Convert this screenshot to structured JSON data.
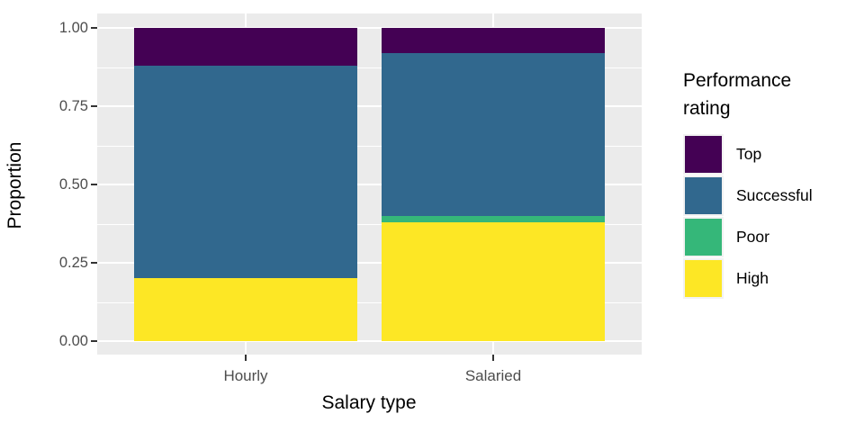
{
  "chart_data": {
    "type": "bar",
    "stacked": true,
    "normalized": true,
    "title": "",
    "xlabel": "Salary type",
    "ylabel": "Proportion",
    "categories": [
      "Hourly",
      "Salaried"
    ],
    "series": [
      {
        "name": "High",
        "color": "#FDE725",
        "values": [
          0.2,
          0.38
        ]
      },
      {
        "name": "Poor",
        "color": "#35B779",
        "values": [
          0.0,
          0.02
        ]
      },
      {
        "name": "Successful",
        "color": "#31688E",
        "values": [
          0.68,
          0.52
        ]
      },
      {
        "name": "Top",
        "color": "#440154",
        "values": [
          0.12,
          0.08
        ]
      }
    ],
    "series_order": "bottom-to-top",
    "y_ticks": [
      0,
      0.25,
      0.5,
      0.75,
      1.0
    ],
    "y_tick_labels": [
      "0.00",
      "0.25",
      "0.50",
      "0.75",
      "1.00"
    ],
    "ylim": [
      0,
      1
    ],
    "grid": true,
    "legend": {
      "title": "Performance rating",
      "position": "right",
      "entries": [
        {
          "label": "Top",
          "color": "#440154"
        },
        {
          "label": "Successful",
          "color": "#31688E"
        },
        {
          "label": "Poor",
          "color": "#35B779"
        },
        {
          "label": "High",
          "color": "#FDE725"
        }
      ]
    }
  },
  "style": {
    "figure_bg": "#FFFFFF",
    "panel_bg": "#EBEBEB",
    "grid_color": "#FFFFFF",
    "tick_label_color": "#4D4D4D",
    "axis_title_color": "#000000",
    "tick_mark_color": "#333333",
    "legend_key_bg": "#F2F2F2"
  }
}
